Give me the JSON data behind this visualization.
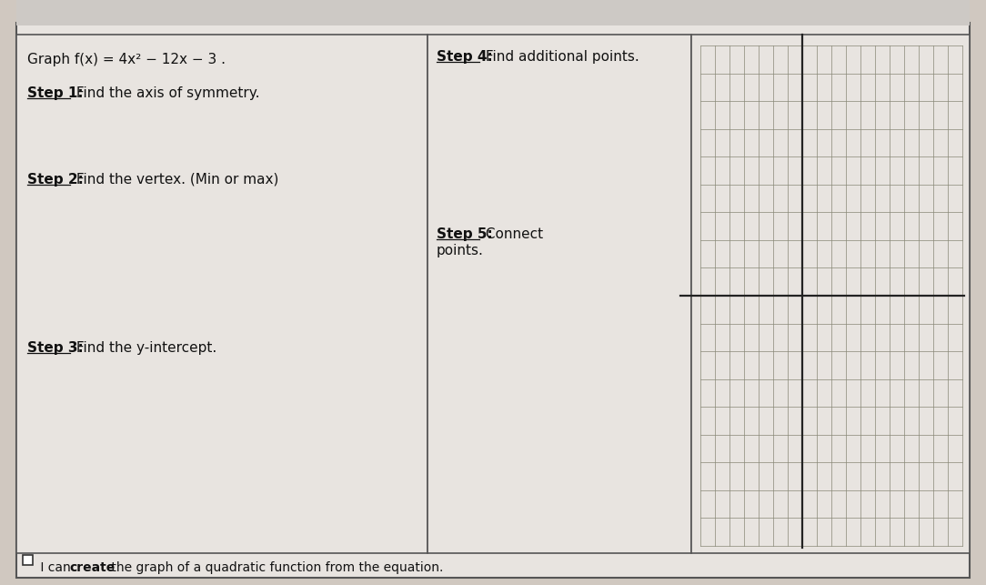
{
  "bg_color": "#d0c8c0",
  "paper_color": "#e8e4e0",
  "outer_border_color": "#555555",
  "title_equation": "Graph f(x) = 4x² − 12x − 3 .",
  "step1_label": "Step 1:",
  "step1_text": " Find the axis of symmetry.",
  "step2_label": "Step 2:",
  "step2_text": " Find the vertex. (Min or max)",
  "step3_label": "Step 3:",
  "step3_text": " Find the y-intercept.",
  "step4_label": "Step 4:",
  "step4_text": " Find additional points.",
  "step5_label": "Step 5:",
  "step5_text_line1": " Connect",
  "step5_text_line2": "points.",
  "footer_text1": " I can ",
  "footer_bold": "create",
  "footer_text2": " the graph of a quadratic function from the equation.",
  "grid_color": "#888877",
  "axis_color": "#222222",
  "grid_rows": 18,
  "grid_cols": 18,
  "font_size_main": 11,
  "font_size_footer": 10
}
